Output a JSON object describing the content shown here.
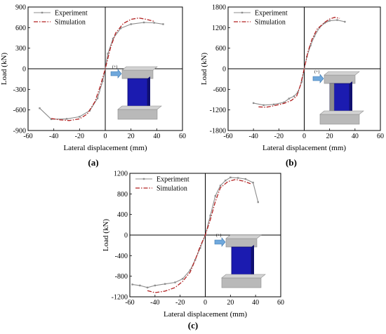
{
  "chart_data": [
    {
      "type": "line",
      "panel_label": "(a)",
      "xlabel": "Lateral displacement (mm)",
      "ylabel": "Load (kN)",
      "xlim": [
        -60,
        60
      ],
      "ylim": [
        -900,
        900
      ],
      "xticks": [
        -60,
        -40,
        -20,
        0,
        20,
        40,
        60
      ],
      "yticks": [
        -900,
        -600,
        -300,
        0,
        300,
        600,
        900
      ],
      "legend_position": "top-left",
      "colors": {
        "experiment": "#8c8c8c",
        "simulation": "#b22222"
      },
      "series": [
        {
          "name": "Experiment",
          "style": "solid-markers",
          "x": [
            -51,
            -42,
            -30,
            -20,
            -12,
            -6,
            -2,
            0,
            2,
            6,
            12,
            20,
            30,
            38,
            45
          ],
          "y": [
            -575,
            -735,
            -730,
            -700,
            -610,
            -430,
            -180,
            0,
            220,
            440,
            590,
            650,
            675,
            670,
            650
          ]
        },
        {
          "name": "Simulation",
          "style": "dash-dot",
          "x": [
            -42,
            -35,
            -28,
            -20,
            -14,
            -8,
            -4,
            0,
            4,
            8,
            14,
            20,
            26,
            32,
            38
          ],
          "y": [
            -725,
            -745,
            -755,
            -730,
            -660,
            -480,
            -260,
            0,
            300,
            520,
            660,
            720,
            740,
            720,
            690
          ]
        }
      ]
    },
    {
      "type": "line",
      "panel_label": "(b)",
      "xlabel": "Lateral displacement (mm)",
      "ylabel": "Load (kN)",
      "xlim": [
        -60,
        60
      ],
      "ylim": [
        -1800,
        1800
      ],
      "xticks": [
        -60,
        -40,
        -20,
        0,
        20,
        40,
        60
      ],
      "yticks": [
        -1800,
        -1200,
        -600,
        0,
        600,
        1200,
        1800
      ],
      "legend_position": "top-left",
      "colors": {
        "experiment": "#8c8c8c",
        "simulation": "#b22222"
      },
      "series": [
        {
          "name": "Experiment",
          "style": "solid-markers",
          "x": [
            -40,
            -32,
            -24,
            -16,
            -12,
            -8,
            -5,
            -2,
            0,
            2,
            5,
            8,
            12,
            16,
            20,
            26,
            32
          ],
          "y": [
            -1000,
            -1060,
            -1040,
            -980,
            -870,
            -800,
            -680,
            -380,
            0,
            350,
            680,
            950,
            1200,
            1330,
            1400,
            1420,
            1370
          ]
        },
        {
          "name": "Simulation",
          "style": "dash-dot",
          "x": [
            -36,
            -30,
            -24,
            -16,
            -10,
            -6,
            -3,
            0,
            3,
            6,
            10,
            16,
            20,
            24,
            28
          ],
          "y": [
            -1110,
            -1120,
            -1080,
            -1010,
            -920,
            -800,
            -480,
            0,
            500,
            850,
            1150,
            1350,
            1450,
            1500,
            1470
          ]
        }
      ]
    },
    {
      "type": "line",
      "panel_label": "(c)",
      "xlabel": "Lateral displacement (mm)",
      "ylabel": "Load (kN)",
      "xlim": [
        -60,
        60
      ],
      "ylim": [
        -1200,
        1200
      ],
      "xticks": [
        -60,
        -40,
        -20,
        0,
        20,
        40,
        60
      ],
      "yticks": [
        -1200,
        -800,
        -400,
        0,
        400,
        800,
        1200
      ],
      "legend_position": "top-left",
      "colors": {
        "experiment": "#8c8c8c",
        "simulation": "#b22222"
      },
      "series": [
        {
          "name": "Experiment",
          "style": "solid-markers",
          "x": [
            -58,
            -52,
            -46,
            -40,
            -32,
            -24,
            -18,
            -12,
            -8,
            -4,
            0,
            4,
            8,
            12,
            16,
            20,
            26,
            32,
            38,
            42
          ],
          "y": [
            -960,
            -980,
            -1020,
            -980,
            -950,
            -920,
            -850,
            -680,
            -480,
            -250,
            0,
            380,
            760,
            960,
            1060,
            1120,
            1110,
            1090,
            1020,
            640
          ]
        },
        {
          "name": "Simulation",
          "style": "dash-dot",
          "x": [
            -46,
            -40,
            -32,
            -24,
            -18,
            -12,
            -8,
            -4,
            0,
            4,
            8,
            12,
            18,
            24,
            30,
            36
          ],
          "y": [
            -1080,
            -1120,
            -1090,
            -1020,
            -900,
            -720,
            -480,
            -220,
            0,
            300,
            650,
            920,
            1040,
            1080,
            1050,
            1000
          ]
        }
      ]
    }
  ]
}
